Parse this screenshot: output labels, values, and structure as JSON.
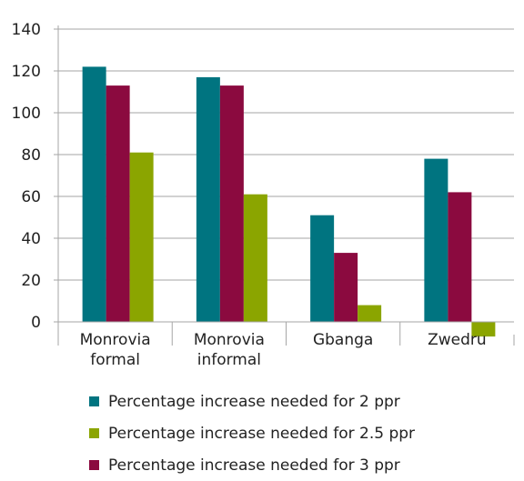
{
  "chart_data": {
    "type": "bar",
    "categories": [
      [
        "Monrovia",
        "formal"
      ],
      [
        "Monrovia",
        "informal"
      ],
      [
        "Gbanga"
      ],
      [
        "Zwedru"
      ]
    ],
    "ylim": [
      0,
      140
    ],
    "yticks": [
      0,
      20,
      40,
      60,
      80,
      100,
      120,
      140
    ],
    "grid": true,
    "legend_position": "bottom",
    "series": [
      {
        "name": "Percentage increase needed for 2 ppr",
        "color": "#007480",
        "values": [
          122,
          117,
          51,
          78
        ]
      },
      {
        "name": "Percentage increase needed for 3 ppr",
        "color": "#8B0A3F",
        "values": [
          113,
          113,
          33,
          62
        ]
      },
      {
        "name": "Percentage increase needed for 2.5 ppr",
        "color": "#8BA500",
        "values": [
          81,
          61,
          8,
          -7
        ]
      }
    ]
  },
  "legend": [
    {
      "label": "Percentage increase needed for 2 ppr",
      "color": "#007480"
    },
    {
      "label": "Percentage increase needed for 2.5 ppr",
      "color": "#8BA500"
    },
    {
      "label": "Percentage increase needed for 3 ppr",
      "color": "#8B0A3F"
    }
  ]
}
